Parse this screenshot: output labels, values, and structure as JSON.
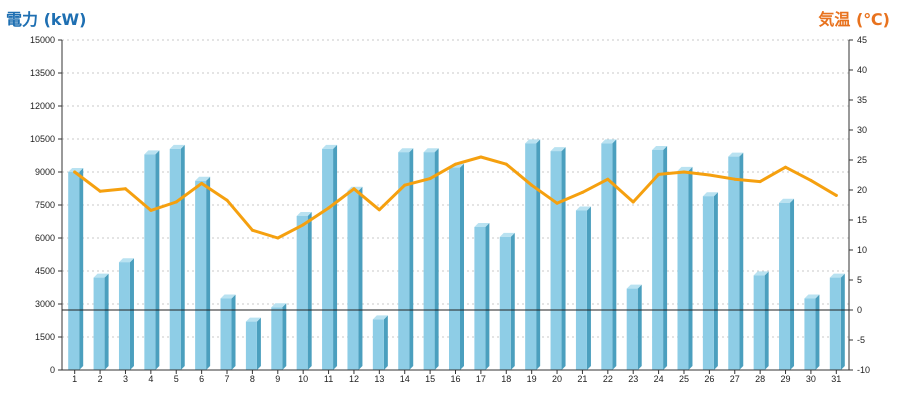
{
  "colors": {
    "bar_front": "#8ecde6",
    "bar_side": "#4b9fbe",
    "bar_top": "#b9e2f1",
    "line": "#f5a00f",
    "left_title": "#1e6fb2",
    "right_title": "#e8721e",
    "grid": "#c8c8c8",
    "axis": "#333333"
  },
  "chart_data": {
    "type": "bar",
    "title": "",
    "left_axis": {
      "label": "電力 (kW)",
      "min": 0,
      "max": 15000,
      "step": 1500
    },
    "right_axis": {
      "label": "気温 (℃)",
      "min": -10,
      "max": 45,
      "step": 5
    },
    "grid": true,
    "categories": [
      "1",
      "2",
      "3",
      "4",
      "5",
      "6",
      "7",
      "8",
      "9",
      "10",
      "11",
      "12",
      "13",
      "14",
      "15",
      "16",
      "17",
      "18",
      "19",
      "20",
      "21",
      "22",
      "23",
      "24",
      "25",
      "26",
      "27",
      "28",
      "29",
      "30",
      "31"
    ],
    "series": [
      {
        "type": "bar",
        "axis": "left",
        "values": [
          9000,
          4200,
          4900,
          9800,
          10050,
          8600,
          3250,
          2200,
          2850,
          7000,
          10050,
          8150,
          2300,
          9900,
          9900,
          9200,
          6500,
          6050,
          10300,
          9950,
          7250,
          10300,
          3700,
          10000,
          9050,
          7900,
          9700,
          4300,
          7600,
          3250,
          4200
        ]
      },
      {
        "type": "line",
        "axis": "right",
        "values": [
          23.0,
          19.8,
          20.2,
          16.6,
          18.0,
          21.1,
          18.3,
          13.3,
          12.0,
          14.2,
          17.0,
          20.2,
          16.7,
          20.8,
          21.9,
          24.3,
          25.5,
          24.3,
          20.8,
          17.8,
          19.6,
          21.8,
          18.0,
          22.6,
          23.0,
          22.5,
          21.8,
          21.4,
          23.8,
          21.6,
          19.1
        ]
      }
    ]
  }
}
